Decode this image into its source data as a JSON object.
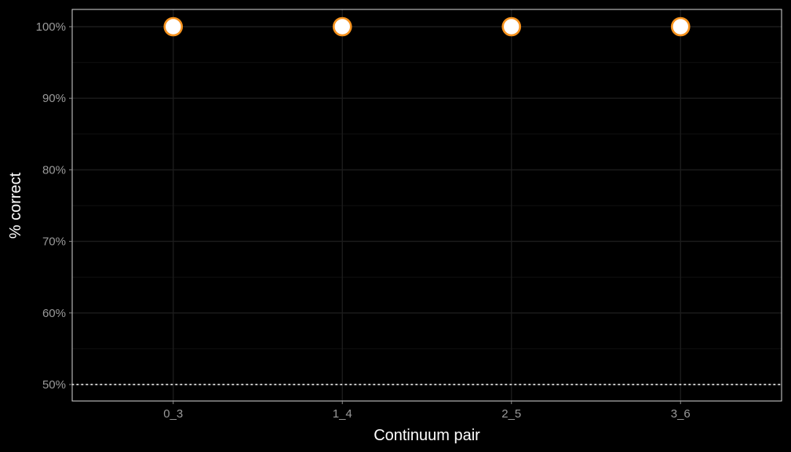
{
  "chart_data": {
    "type": "scatter",
    "categories": [
      "0_3",
      "1_4",
      "2_5",
      "3_6"
    ],
    "values": [
      1.0,
      1.0,
      1.0,
      1.0
    ],
    "xlabel": "Continuum pair",
    "ylabel": "% correct",
    "ylim": [
      0.5,
      1.0
    ],
    "yticks": [
      0.5,
      0.6,
      0.7,
      0.8,
      0.9,
      1.0
    ],
    "ytick_labels": [
      "50%",
      "60%",
      "70%",
      "80%",
      "90%",
      "100%"
    ],
    "reference_line": {
      "y": 0.5,
      "style": "dotted"
    },
    "grid": true,
    "legend": "none",
    "colors": {
      "background": "#000000",
      "panel_border": "#d9d9d9",
      "grid_major": "#1c1c1c",
      "grid_minor": "#0f0f0f",
      "point_fill": "#ffffff",
      "point_stroke": "#f7931e",
      "reference_line": "#ffffff",
      "tick_text": "#9a9a9a",
      "title_text": "#ffffff"
    }
  }
}
